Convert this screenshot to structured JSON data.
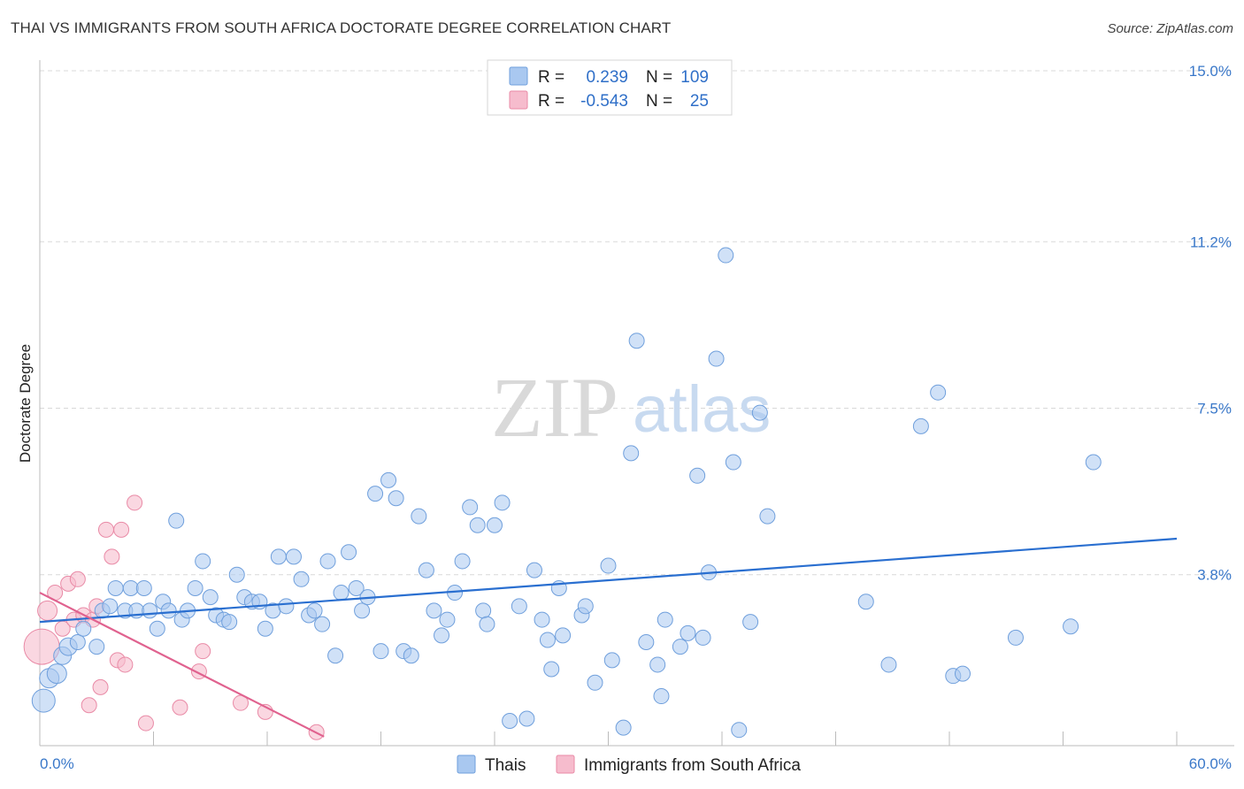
{
  "header": {
    "title": "THAI VS IMMIGRANTS FROM SOUTH AFRICA DOCTORATE DEGREE CORRELATION CHART",
    "source": "Source: ZipAtlas.com"
  },
  "watermark": {
    "zip": "ZIP",
    "atlas": "atlas"
  },
  "colors": {
    "thai_fill": "#a9c8f0",
    "thai_stroke": "#6f9fdc",
    "thai_line": "#2a6fd0",
    "sa_fill": "#f6bccd",
    "sa_stroke": "#e98aa6",
    "sa_line": "#e0628f",
    "axis_label": "#3a78c9",
    "grid": "#d9d9d9"
  },
  "legend": {
    "r_label": "R =",
    "n_label": "N =",
    "thai": {
      "r": "0.239",
      "n": "109"
    },
    "sa": {
      "r": "-0.543",
      "n": "25"
    }
  },
  "chart_data": {
    "type": "scatter",
    "xlabel": "",
    "ylabel": "Doctorate Degree",
    "xlim": [
      0,
      60
    ],
    "ylim": [
      0,
      15
    ],
    "x_tick_labels": {
      "min": "0.0%",
      "max": "60.0%"
    },
    "y_ticks": [
      {
        "value": 3.8,
        "label": "3.8%"
      },
      {
        "value": 7.5,
        "label": "7.5%"
      },
      {
        "value": 11.2,
        "label": "11.2%"
      },
      {
        "value": 15.0,
        "label": "15.0%"
      }
    ],
    "series": [
      {
        "name": "Thais",
        "r": 0.239,
        "n": 109,
        "trend": {
          "x": [
            0,
            60
          ],
          "y": [
            2.75,
            4.6
          ]
        },
        "points": [
          [
            0.2,
            1.0
          ],
          [
            0.5,
            1.5
          ],
          [
            0.9,
            1.6
          ],
          [
            1.2,
            2.0
          ],
          [
            1.5,
            2.2
          ],
          [
            2.0,
            2.3
          ],
          [
            2.3,
            2.6
          ],
          [
            3.0,
            2.2
          ],
          [
            3.3,
            3.0
          ],
          [
            3.7,
            3.1
          ],
          [
            4.0,
            3.5
          ],
          [
            4.5,
            3.0
          ],
          [
            4.8,
            3.5
          ],
          [
            5.1,
            3.0
          ],
          [
            5.5,
            3.5
          ],
          [
            5.8,
            3.0
          ],
          [
            6.2,
            2.6
          ],
          [
            6.5,
            3.2
          ],
          [
            6.8,
            3.0
          ],
          [
            7.2,
            5.0
          ],
          [
            7.5,
            2.8
          ],
          [
            7.8,
            3.0
          ],
          [
            8.2,
            3.5
          ],
          [
            8.6,
            4.1
          ],
          [
            9.0,
            3.3
          ],
          [
            9.3,
            2.9
          ],
          [
            9.7,
            2.8
          ],
          [
            10.0,
            2.75
          ],
          [
            10.4,
            3.8
          ],
          [
            10.8,
            3.3
          ],
          [
            11.2,
            3.2
          ],
          [
            11.6,
            3.2
          ],
          [
            11.9,
            2.6
          ],
          [
            12.3,
            3.0
          ],
          [
            12.6,
            4.2
          ],
          [
            13.0,
            3.1
          ],
          [
            13.4,
            4.2
          ],
          [
            13.8,
            3.7
          ],
          [
            14.2,
            2.9
          ],
          [
            14.5,
            3.0
          ],
          [
            14.9,
            2.7
          ],
          [
            15.2,
            4.1
          ],
          [
            15.6,
            2.0
          ],
          [
            15.9,
            3.4
          ],
          [
            16.3,
            4.3
          ],
          [
            16.7,
            3.5
          ],
          [
            17.0,
            3.0
          ],
          [
            17.3,
            3.3
          ],
          [
            17.7,
            5.6
          ],
          [
            18.0,
            2.1
          ],
          [
            18.4,
            5.9
          ],
          [
            18.8,
            5.5
          ],
          [
            19.2,
            2.1
          ],
          [
            19.6,
            2.0
          ],
          [
            20.0,
            5.1
          ],
          [
            20.4,
            3.9
          ],
          [
            20.8,
            3.0
          ],
          [
            21.2,
            2.45
          ],
          [
            21.5,
            2.8
          ],
          [
            21.9,
            3.4
          ],
          [
            22.3,
            4.1
          ],
          [
            22.7,
            5.3
          ],
          [
            23.1,
            4.9
          ],
          [
            23.4,
            3.0
          ],
          [
            23.6,
            2.7
          ],
          [
            24.0,
            4.9
          ],
          [
            24.4,
            5.4
          ],
          [
            24.8,
            0.55
          ],
          [
            25.3,
            3.1
          ],
          [
            25.7,
            0.6
          ],
          [
            26.1,
            3.9
          ],
          [
            26.5,
            2.8
          ],
          [
            26.8,
            2.35
          ],
          [
            27.0,
            1.7
          ],
          [
            27.4,
            3.5
          ],
          [
            27.6,
            2.45
          ],
          [
            28.6,
            2.9
          ],
          [
            28.8,
            3.1
          ],
          [
            29.3,
            1.4
          ],
          [
            30.2,
            1.9
          ],
          [
            30.0,
            4.0
          ],
          [
            30.8,
            0.4
          ],
          [
            31.2,
            6.5
          ],
          [
            31.5,
            9.0
          ],
          [
            32.0,
            2.3
          ],
          [
            32.6,
            1.8
          ],
          [
            32.8,
            1.1
          ],
          [
            33.0,
            2.8
          ],
          [
            33.8,
            2.2
          ],
          [
            34.2,
            2.5
          ],
          [
            34.7,
            6.0
          ],
          [
            35.0,
            2.4
          ],
          [
            35.3,
            3.85
          ],
          [
            35.7,
            8.6
          ],
          [
            36.2,
            10.9
          ],
          [
            36.6,
            6.3
          ],
          [
            36.9,
            0.35
          ],
          [
            37.5,
            2.75
          ],
          [
            38.0,
            7.4
          ],
          [
            38.4,
            5.1
          ],
          [
            43.6,
            3.2
          ],
          [
            44.8,
            1.8
          ],
          [
            46.5,
            7.1
          ],
          [
            47.4,
            7.85
          ],
          [
            48.2,
            1.55
          ],
          [
            48.7,
            1.6
          ],
          [
            51.5,
            2.4
          ],
          [
            54.4,
            2.65
          ],
          [
            55.6,
            6.3
          ]
        ]
      },
      {
        "name": "Immigrants from South Africa",
        "r": -0.543,
        "n": 25,
        "trend": {
          "x": [
            0,
            15
          ],
          "y": [
            3.4,
            0.2
          ]
        },
        "points": [
          [
            0.1,
            2.2
          ],
          [
            0.4,
            3.0
          ],
          [
            0.8,
            3.4
          ],
          [
            1.2,
            2.6
          ],
          [
            1.5,
            3.6
          ],
          [
            1.8,
            2.8
          ],
          [
            2.0,
            3.7
          ],
          [
            2.3,
            2.9
          ],
          [
            2.6,
            0.9
          ],
          [
            2.8,
            2.8
          ],
          [
            3.0,
            3.1
          ],
          [
            3.2,
            1.3
          ],
          [
            3.5,
            4.8
          ],
          [
            3.8,
            4.2
          ],
          [
            4.1,
            1.9
          ],
          [
            4.3,
            4.8
          ],
          [
            4.5,
            1.8
          ],
          [
            5.0,
            5.4
          ],
          [
            5.6,
            0.5
          ],
          [
            7.4,
            0.85
          ],
          [
            8.4,
            1.65
          ],
          [
            8.6,
            2.1
          ],
          [
            10.6,
            0.95
          ],
          [
            11.9,
            0.75
          ],
          [
            14.6,
            0.3
          ]
        ]
      }
    ],
    "legend_position": "top-center",
    "bottom_legend": [
      "Thais",
      "Immigrants from South Africa"
    ],
    "grid": true
  }
}
